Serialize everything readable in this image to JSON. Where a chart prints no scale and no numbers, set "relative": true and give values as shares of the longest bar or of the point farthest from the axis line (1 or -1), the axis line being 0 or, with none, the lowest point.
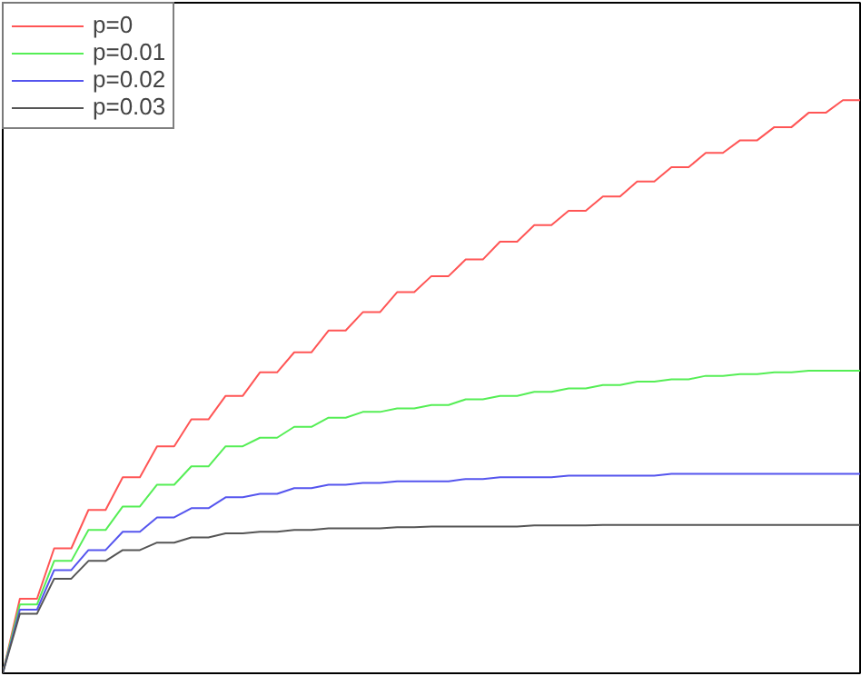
{
  "chart_data": {
    "type": "line",
    "relative": true,
    "legend": "top left",
    "categories": [
      null,
      null,
      null,
      null,
      null,
      null,
      null,
      null,
      null,
      null,
      null,
      null,
      null,
      null,
      null,
      null,
      null,
      null,
      null,
      null,
      null,
      null,
      null,
      null,
      null,
      null,
      null,
      null,
      null,
      null,
      null,
      null,
      null,
      null,
      null,
      null,
      null,
      null,
      null,
      null,
      null,
      null,
      null,
      null,
      null,
      null,
      null,
      null,
      null,
      null,
      null
    ],
    "series": [
      {
        "name": "p=0",
        "color": "#ff5555",
        "values": [
          0,
          0.13,
          0.13,
          0.218,
          0.218,
          0.285,
          0.285,
          0.342,
          0.342,
          0.396,
          0.396,
          0.443,
          0.443,
          0.484,
          0.484,
          0.525,
          0.525,
          0.56,
          0.56,
          0.598,
          0.598,
          0.63,
          0.63,
          0.665,
          0.665,
          0.693,
          0.693,
          0.722,
          0.722,
          0.753,
          0.753,
          0.782,
          0.782,
          0.807,
          0.807,
          0.832,
          0.832,
          0.858,
          0.858,
          0.883,
          0.883,
          0.908,
          0.908,
          0.93,
          0.93,
          0.953,
          0.953,
          0.978,
          0.978,
          1,
          1
        ]
      },
      {
        "name": "p=0.01",
        "color": "#55ee55",
        "values": [
          0,
          0.12,
          0.12,
          0.196,
          0.196,
          0.25,
          0.25,
          0.291,
          0.291,
          0.329,
          0.329,
          0.361,
          0.361,
          0.396,
          0.396,
          0.411,
          0.411,
          0.43,
          0.43,
          0.446,
          0.446,
          0.456,
          0.456,
          0.462,
          0.462,
          0.468,
          0.468,
          0.478,
          0.478,
          0.484,
          0.484,
          0.491,
          0.491,
          0.497,
          0.497,
          0.503,
          0.503,
          0.509,
          0.509,
          0.513,
          0.513,
          0.519,
          0.519,
          0.522,
          0.522,
          0.525,
          0.525,
          0.528,
          0.528,
          0.528,
          0.528
        ]
      },
      {
        "name": "p=0.02",
        "color": "#5555ee",
        "values": [
          0,
          0.111,
          0.111,
          0.18,
          0.18,
          0.215,
          0.215,
          0.247,
          0.247,
          0.272,
          0.272,
          0.288,
          0.288,
          0.307,
          0.307,
          0.313,
          0.313,
          0.323,
          0.323,
          0.329,
          0.329,
          0.332,
          0.332,
          0.335,
          0.335,
          0.335,
          0.335,
          0.339,
          0.339,
          0.342,
          0.342,
          0.342,
          0.342,
          0.345,
          0.345,
          0.345,
          0.345,
          0.345,
          0.345,
          0.348,
          0.348,
          0.348,
          0.348,
          0.348,
          0.348,
          0.348,
          0.348,
          0.348,
          0.348,
          0.348,
          0.348
        ]
      },
      {
        "name": "p=0.03",
        "color": "#555555",
        "values": [
          0,
          0.104,
          0.104,
          0.165,
          0.165,
          0.196,
          0.196,
          0.215,
          0.215,
          0.228,
          0.228,
          0.237,
          0.237,
          0.244,
          0.244,
          0.247,
          0.247,
          0.25,
          0.25,
          0.253,
          0.253,
          0.253,
          0.253,
          0.255,
          0.255,
          0.256,
          0.256,
          0.256,
          0.256,
          0.256,
          0.256,
          0.258,
          0.258,
          0.258,
          0.258,
          0.259,
          0.259,
          0.259,
          0.259,
          0.259,
          0.259,
          0.259,
          0.259,
          0.259,
          0.259,
          0.259,
          0.259,
          0.259,
          0.259,
          0.259,
          0.259
        ]
      }
    ]
  }
}
